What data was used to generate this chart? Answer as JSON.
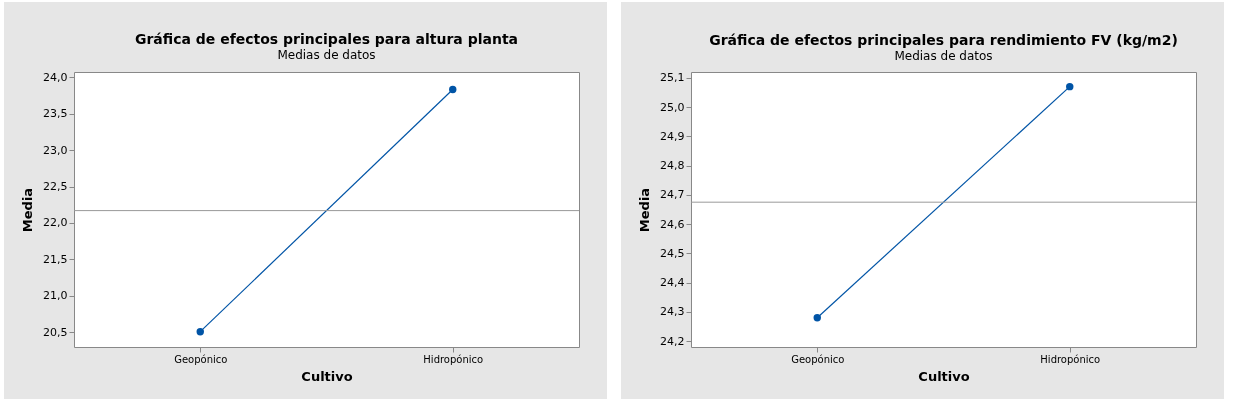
{
  "chart_data": [
    {
      "type": "line",
      "title": "Gráfica de efectos principales para altura planta",
      "subtitle": "Medias de datos",
      "xlabel": "Cultivo",
      "ylabel": "Media",
      "categories": [
        "Geopónico",
        "Hidropónico"
      ],
      "series": [
        {
          "color": "#0054a6",
          "values": [
            20.51,
            23.83
          ]
        }
      ],
      "marker": "circle",
      "ylim": [
        20.3,
        24.07
      ],
      "yticks": [
        {
          "value": 20.5,
          "label": "20,5"
        },
        {
          "value": 21,
          "label": "21,0"
        },
        {
          "value": 21.5,
          "label": "21,5"
        },
        {
          "value": 22,
          "label": "22,0"
        },
        {
          "value": 22.5,
          "label": "22,5"
        },
        {
          "value": 23,
          "label": "23,0"
        },
        {
          "value": 23.5,
          "label": "23,5"
        },
        {
          "value": 24,
          "label": "24,0"
        }
      ],
      "ref_lines": [
        {
          "axis": "y",
          "value": 22.17,
          "color": "#999999"
        }
      ]
    },
    {
      "type": "line",
      "title": "Gráfica de efectos principales para rendimiento FV (kg/m2)",
      "subtitle": "Medias de datos",
      "xlabel": "Cultivo",
      "ylabel": "Media",
      "categories": [
        "Geopónico",
        "Hidropónico"
      ],
      "series": [
        {
          "color": "#0054a6",
          "values": [
            24.28,
            25.07
          ]
        }
      ],
      "marker": "circle",
      "ylim": [
        24.18,
        25.12
      ],
      "yticks": [
        {
          "value": 24.2,
          "label": "24,2"
        },
        {
          "value": 24.3,
          "label": "24,3"
        },
        {
          "value": 24.4,
          "label": "24,4"
        },
        {
          "value": 24.5,
          "label": "24,5"
        },
        {
          "value": 24.6,
          "label": "24,6"
        },
        {
          "value": 24.7,
          "label": "24,7"
        },
        {
          "value": 24.8,
          "label": "24,8"
        },
        {
          "value": 24.9,
          "label": "24,9"
        },
        {
          "value": 25,
          "label": "25,0"
        },
        {
          "value": 25.1,
          "label": "25,1"
        }
      ],
      "ref_lines": [
        {
          "axis": "y",
          "value": 24.675,
          "color": "#999999"
        }
      ]
    }
  ]
}
